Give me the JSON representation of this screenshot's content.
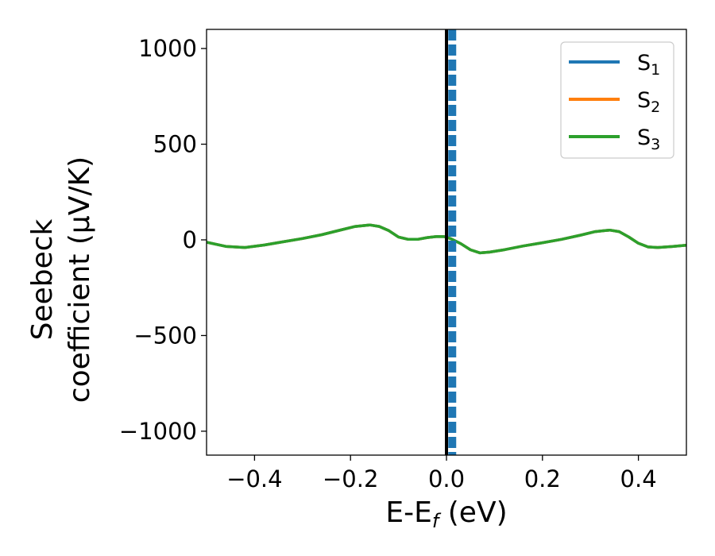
{
  "chart_data": {
    "type": "line",
    "xlabel": "E-E",
    "xlabel_sub": "f",
    "xlabel_unit": " (eV)",
    "ylabel_line1": "Seebeck",
    "ylabel_line2": "coefficient  (μV/K)",
    "xlim": [
      -0.5,
      0.5
    ],
    "ylim": [
      -1125,
      1100
    ],
    "x_ticks": [
      -0.4,
      -0.2,
      0.0,
      0.2,
      0.4
    ],
    "x_tick_labels": [
      "−0.4",
      "−0.2",
      "0.0",
      "0.2",
      "0.4"
    ],
    "y_ticks": [
      1000,
      500,
      0,
      -500,
      -1000
    ],
    "y_tick_labels": [
      "1000",
      "500",
      "0",
      "−500",
      "−1000"
    ],
    "grid": false,
    "legend_position": "upper right",
    "reference_line": {
      "x": 0.0,
      "color": "#000000",
      "style": "solid"
    },
    "vertical_marker": {
      "x": 0.012,
      "color": "#1f77b4",
      "style": "dashed"
    },
    "x": [
      -0.5,
      -0.46,
      -0.42,
      -0.38,
      -0.34,
      -0.3,
      -0.26,
      -0.22,
      -0.19,
      -0.16,
      -0.14,
      -0.12,
      -0.1,
      -0.08,
      -0.06,
      -0.04,
      -0.02,
      -0.005,
      0.0,
      0.01,
      0.03,
      0.05,
      0.07,
      0.09,
      0.12,
      0.16,
      0.2,
      0.24,
      0.28,
      0.31,
      0.34,
      0.36,
      0.38,
      0.4,
      0.42,
      0.44,
      0.47,
      0.5
    ],
    "series": [
      {
        "name": "S",
        "sub": "1",
        "color": "#1f77b4",
        "values": [
          -12,
          -34,
          -40,
          -27,
          -10,
          7,
          27,
          52,
          70,
          78,
          70,
          48,
          15,
          3,
          3,
          12,
          18,
          17,
          14,
          5,
          -20,
          -52,
          -68,
          -64,
          -52,
          -32,
          -15,
          3,
          25,
          43,
          51,
          43,
          15,
          -18,
          -37,
          -40,
          -35,
          -28
        ]
      },
      {
        "name": "S",
        "sub": "2",
        "color": "#ff7f0e",
        "values": [
          -12,
          -34,
          -40,
          -27,
          -10,
          7,
          27,
          52,
          70,
          78,
          70,
          48,
          15,
          3,
          3,
          12,
          18,
          17,
          14,
          5,
          -20,
          -52,
          -68,
          -64,
          -52,
          -32,
          -15,
          3,
          25,
          43,
          51,
          43,
          15,
          -18,
          -37,
          -40,
          -35,
          -28
        ]
      },
      {
        "name": "S",
        "sub": "3",
        "color": "#2ca02c",
        "values": [
          -12,
          -34,
          -40,
          -27,
          -10,
          7,
          27,
          52,
          70,
          78,
          70,
          48,
          15,
          3,
          3,
          12,
          18,
          17,
          14,
          5,
          -20,
          -52,
          -68,
          -64,
          -52,
          -32,
          -15,
          3,
          25,
          43,
          51,
          43,
          15,
          -18,
          -37,
          -40,
          -35,
          -28
        ]
      }
    ]
  }
}
